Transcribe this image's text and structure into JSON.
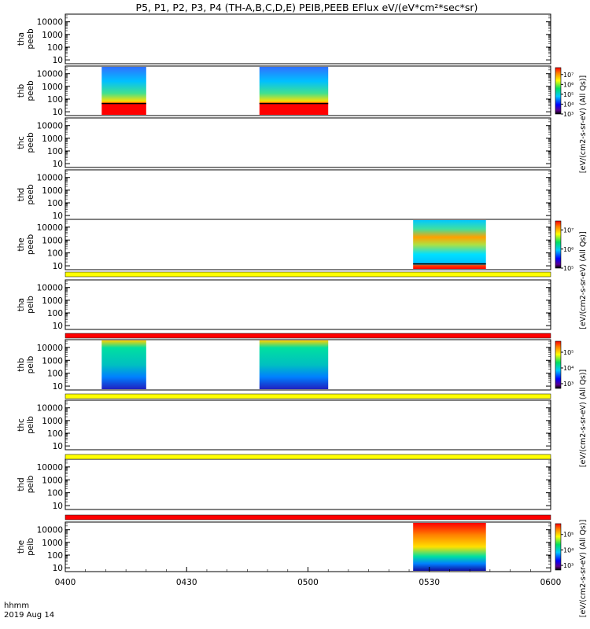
{
  "title": "P5, P1, P2, P3, P4 (TH-A,B,C,D,E) PEIB,PEEB EFlux eV/(eV*cm²*sec*sr)",
  "xaxis": {
    "ticks": [
      "0400",
      "0430",
      "0500",
      "0530",
      "0600"
    ],
    "label_line1": "hhmm",
    "label_line2": "2019 Aug 14"
  },
  "chart_data": [
    {
      "type": "heatmap",
      "probe": "tha",
      "species": "peeb",
      "ylabel": [
        "tha",
        "peeb"
      ],
      "yscale": "log",
      "ylim": [
        5,
        40000
      ],
      "yticks": [
        "10000",
        "1000",
        "100",
        "10"
      ],
      "xlim": [
        "04:00",
        "06:00"
      ],
      "data_intervals": []
    },
    {
      "type": "heatmap",
      "probe": "thb",
      "species": "peeb",
      "ylabel": [
        "thb",
        "peeb"
      ],
      "yscale": "log",
      "ylim": [
        5,
        40000
      ],
      "yticks": [
        "10000",
        "1000",
        "100",
        "10"
      ],
      "xlim": [
        "04:00",
        "06:00"
      ],
      "data_intervals": [
        [
          "04:09",
          "04:20"
        ],
        [
          "04:48",
          "05:05"
        ]
      ],
      "colorbar": {
        "ticks": [
          "10⁷",
          "10⁶",
          "10⁵",
          "10⁴",
          "10³"
        ],
        "range": [
          1000,
          50000000
        ],
        "label": "[eV/(cm2-s-sr-eV) (All Qs)]"
      }
    },
    {
      "type": "heatmap",
      "probe": "thc",
      "species": "peeb",
      "ylabel": [
        "thc",
        "peeb"
      ],
      "yscale": "log",
      "ylim": [
        5,
        40000
      ],
      "yticks": [
        "10000",
        "1000",
        "100",
        "10"
      ],
      "xlim": [
        "04:00",
        "06:00"
      ],
      "data_intervals": []
    },
    {
      "type": "heatmap",
      "probe": "thd",
      "species": "peeb",
      "ylabel": [
        "thd",
        "peeb"
      ],
      "yscale": "log",
      "ylim": [
        5,
        40000
      ],
      "yticks": [
        "10000",
        "1000",
        "100",
        "10"
      ],
      "xlim": [
        "04:00",
        "06:00"
      ],
      "data_intervals": []
    },
    {
      "type": "heatmap",
      "probe": "the",
      "species": "peeb",
      "ylabel": [
        "the",
        "peeb"
      ],
      "yscale": "log",
      "ylim": [
        5,
        40000
      ],
      "yticks": [
        "10000",
        "1000",
        "100",
        "10"
      ],
      "xlim": [
        "04:00",
        "06:00"
      ],
      "data_intervals": [
        [
          "05:26",
          "05:44"
        ]
      ],
      "colorbar": {
        "ticks": [
          "10⁷",
          "10⁶",
          "10⁵"
        ],
        "range": [
          100000,
          30000000
        ],
        "label": "[eV/(cm2-s-sr-eV) (All Qs)]"
      }
    },
    {
      "type": "heatmap",
      "probe": "tha",
      "species": "peib",
      "ylabel": [
        "tha",
        "peib"
      ],
      "yscale": "log",
      "ylim": [
        5,
        40000
      ],
      "yticks": [
        "10000",
        "1000",
        "100",
        "10"
      ],
      "xlim": [
        "04:00",
        "06:00"
      ],
      "data_intervals": []
    },
    {
      "type": "heatmap",
      "probe": "thb",
      "species": "peib",
      "ylabel": [
        "thb",
        "peib"
      ],
      "yscale": "log",
      "ylim": [
        5,
        40000
      ],
      "yticks": [
        "10000",
        "1000",
        "100",
        "10"
      ],
      "xlim": [
        "04:00",
        "06:00"
      ],
      "data_intervals": [
        [
          "04:09",
          "04:20"
        ],
        [
          "04:48",
          "05:05"
        ]
      ],
      "colorbar": {
        "ticks": [
          "10⁵",
          "10⁴",
          "10³"
        ],
        "range": [
          500,
          500000
        ],
        "label": "[eV/(cm2-s-sr-eV) (All Qs)]"
      }
    },
    {
      "type": "heatmap",
      "probe": "thc",
      "species": "peib",
      "ylabel": [
        "thc",
        "peib"
      ],
      "yscale": "log",
      "ylim": [
        5,
        40000
      ],
      "yticks": [
        "10000",
        "1000",
        "100",
        "10"
      ],
      "xlim": [
        "04:00",
        "06:00"
      ],
      "data_intervals": []
    },
    {
      "type": "heatmap",
      "probe": "thd",
      "species": "peib",
      "ylabel": [
        "thd",
        "peib"
      ],
      "yscale": "log",
      "ylim": [
        5,
        40000
      ],
      "yticks": [
        "10000",
        "1000",
        "100",
        "10"
      ],
      "xlim": [
        "04:00",
        "06:00"
      ],
      "data_intervals": []
    },
    {
      "type": "heatmap",
      "probe": "the",
      "species": "peib",
      "ylabel": [
        "the",
        "peib"
      ],
      "yscale": "log",
      "ylim": [
        5,
        40000
      ],
      "yticks": [
        "10000",
        "1000",
        "100",
        "10"
      ],
      "xlim": [
        "04:00",
        "06:00"
      ],
      "data_intervals": [
        [
          "05:26",
          "05:44"
        ]
      ],
      "colorbar": {
        "ticks": [
          "10⁵",
          "10⁴",
          "10³"
        ],
        "range": [
          500,
          500000
        ],
        "label": "[eV/(cm2-s-sr-eV) (All Qs)]"
      }
    }
  ],
  "status_bars": [
    {
      "after_panel": 4,
      "color": "#ffff00"
    },
    {
      "after_panel": 5,
      "color": "#ff0000"
    },
    {
      "after_panel": 6,
      "color": "#ffff00"
    },
    {
      "after_panel": 7,
      "color": "#ffff00"
    },
    {
      "after_panel": 8,
      "color": "#ff0000"
    }
  ],
  "colorbar_labels": [
    "[eV/(cm2-s-sr-eV) (All Qs)]",
    "[eV/(cm2-s-sr-eV) (All Qs)]",
    "[eV/(cm2-s-sr-eV) (All Qs)]",
    "[eV/(cm2-s-sr-eV) (All Qs)]",
    "[eV/(cm2-s-sr-eV) (All Qs)]"
  ],
  "colors": {
    "background": "#ffffff",
    "axes": "#000000",
    "yellow_bar": "#ffff00",
    "red_bar": "#ff0000"
  }
}
